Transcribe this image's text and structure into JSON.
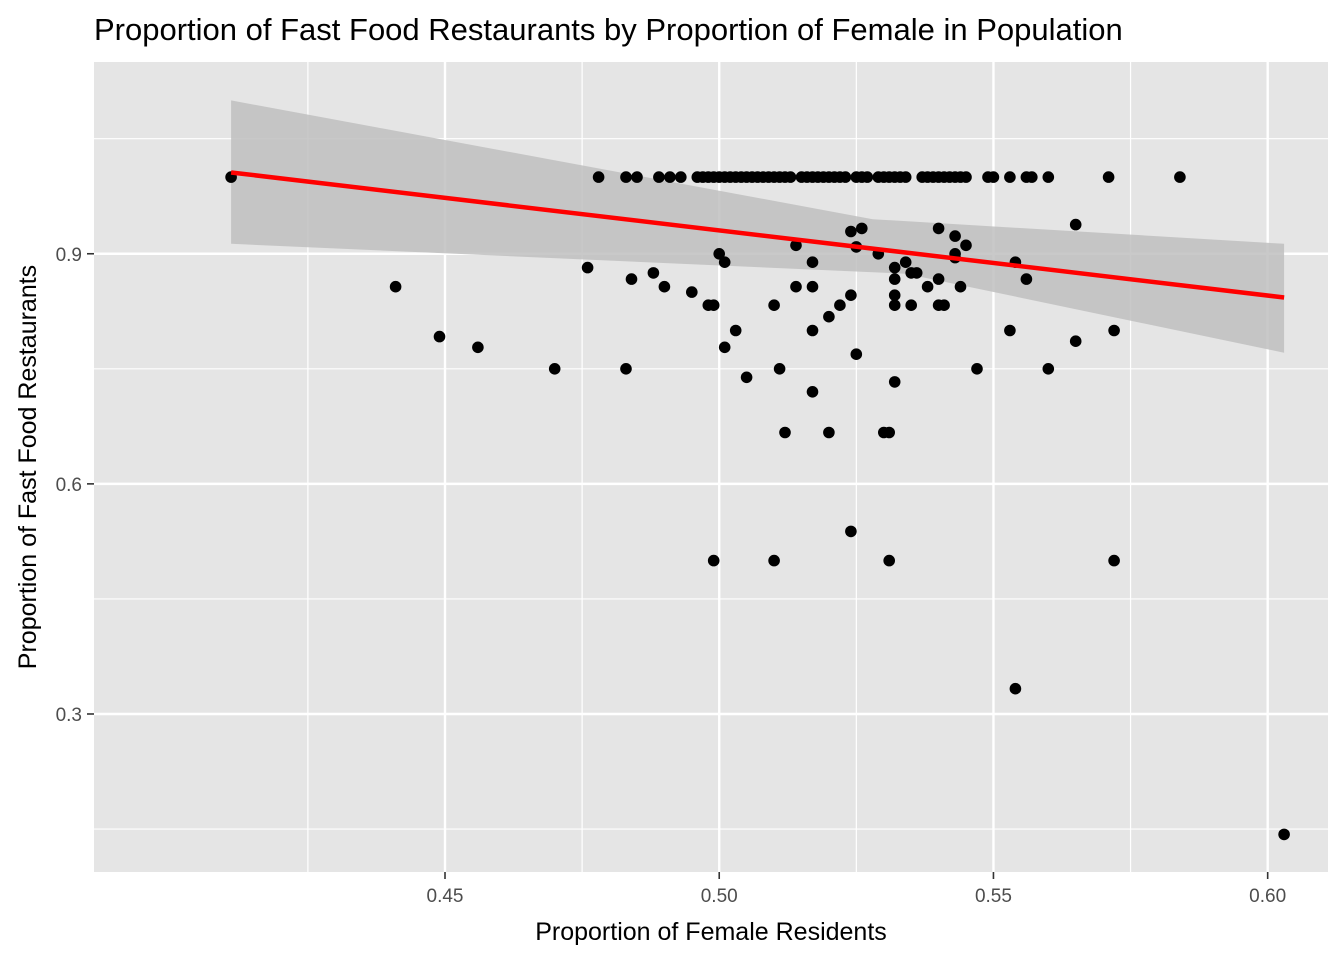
{
  "chart_data": {
    "type": "scatter",
    "title": "Proportion of Fast Food Restaurants by Proportion of Female in Population",
    "xlabel": "Proportion of Female Residents",
    "ylabel": "Proportion of Fast Food Restaurants",
    "xlim": [
      0.386,
      0.611
    ],
    "ylim": [
      0.094,
      1.15
    ],
    "x_ticks": [
      {
        "value": 0.45,
        "label": "0.45"
      },
      {
        "value": 0.5,
        "label": "0.50"
      },
      {
        "value": 0.55,
        "label": "0.55"
      },
      {
        "value": 0.6,
        "label": "0.60"
      }
    ],
    "x_minor_ticks": [
      0.425,
      0.475,
      0.525,
      0.575
    ],
    "y_ticks": [
      {
        "value": 0.3,
        "label": "0.3"
      },
      {
        "value": 0.6,
        "label": "0.6"
      },
      {
        "value": 0.9,
        "label": "0.9"
      }
    ],
    "y_minor_ticks": [
      0.15,
      0.45,
      0.75,
      1.05
    ],
    "grid": true,
    "colors": {
      "panel": "#e5e5e5",
      "grid": "#ffffff",
      "point": "#000000",
      "fit_line": "#ff0000",
      "ribbon": "#bfbfbf",
      "text": "#000000",
      "tick_text": "#4d4d4d"
    },
    "fit": {
      "method": "linear",
      "x": [
        0.411,
        0.603
      ],
      "y": [
        1.006,
        0.843
      ],
      "ci_upper": [
        1.1,
        0.913
      ],
      "ci_lower": [
        0.913,
        0.771
      ],
      "ci_mid_x": [
        0.528,
        0.534
      ],
      "ci_mid_upper": 0.945,
      "ci_mid_lower": 0.874
    },
    "points": [
      [
        0.411,
        1.0
      ],
      [
        0.478,
        1.0
      ],
      [
        0.483,
        1.0
      ],
      [
        0.485,
        1.0
      ],
      [
        0.489,
        1.0
      ],
      [
        0.491,
        1.0
      ],
      [
        0.493,
        1.0
      ],
      [
        0.496,
        1.0
      ],
      [
        0.497,
        1.0
      ],
      [
        0.498,
        1.0
      ],
      [
        0.499,
        1.0
      ],
      [
        0.5,
        1.0
      ],
      [
        0.501,
        1.0
      ],
      [
        0.502,
        1.0
      ],
      [
        0.503,
        1.0
      ],
      [
        0.504,
        1.0
      ],
      [
        0.505,
        1.0
      ],
      [
        0.506,
        1.0
      ],
      [
        0.507,
        1.0
      ],
      [
        0.508,
        1.0
      ],
      [
        0.509,
        1.0
      ],
      [
        0.51,
        1.0
      ],
      [
        0.511,
        1.0
      ],
      [
        0.512,
        1.0
      ],
      [
        0.513,
        1.0
      ],
      [
        0.515,
        1.0
      ],
      [
        0.516,
        1.0
      ],
      [
        0.517,
        1.0
      ],
      [
        0.518,
        1.0
      ],
      [
        0.519,
        1.0
      ],
      [
        0.52,
        1.0
      ],
      [
        0.521,
        1.0
      ],
      [
        0.522,
        1.0
      ],
      [
        0.523,
        1.0
      ],
      [
        0.525,
        1.0
      ],
      [
        0.526,
        1.0
      ],
      [
        0.527,
        1.0
      ],
      [
        0.529,
        1.0
      ],
      [
        0.53,
        1.0
      ],
      [
        0.531,
        1.0
      ],
      [
        0.532,
        1.0
      ],
      [
        0.533,
        1.0
      ],
      [
        0.534,
        1.0
      ],
      [
        0.537,
        1.0
      ],
      [
        0.538,
        1.0
      ],
      [
        0.539,
        1.0
      ],
      [
        0.54,
        1.0
      ],
      [
        0.541,
        1.0
      ],
      [
        0.542,
        1.0
      ],
      [
        0.543,
        1.0
      ],
      [
        0.544,
        1.0
      ],
      [
        0.545,
        1.0
      ],
      [
        0.549,
        1.0
      ],
      [
        0.55,
        1.0
      ],
      [
        0.553,
        1.0
      ],
      [
        0.556,
        1.0
      ],
      [
        0.557,
        1.0
      ],
      [
        0.56,
        1.0
      ],
      [
        0.571,
        1.0
      ],
      [
        0.584,
        1.0
      ],
      [
        0.565,
        0.938
      ],
      [
        0.54,
        0.933
      ],
      [
        0.526,
        0.933
      ],
      [
        0.524,
        0.929
      ],
      [
        0.543,
        0.923
      ],
      [
        0.545,
        0.911
      ],
      [
        0.514,
        0.911
      ],
      [
        0.525,
        0.909
      ],
      [
        0.5,
        0.9
      ],
      [
        0.529,
        0.9
      ],
      [
        0.543,
        0.9
      ],
      [
        0.501,
        0.889
      ],
      [
        0.517,
        0.889
      ],
      [
        0.534,
        0.889
      ],
      [
        0.554,
        0.889
      ],
      [
        0.543,
        0.895
      ],
      [
        0.476,
        0.882
      ],
      [
        0.532,
        0.882
      ],
      [
        0.488,
        0.875
      ],
      [
        0.535,
        0.875
      ],
      [
        0.536,
        0.875
      ],
      [
        0.484,
        0.867
      ],
      [
        0.532,
        0.867
      ],
      [
        0.54,
        0.867
      ],
      [
        0.556,
        0.867
      ],
      [
        0.441,
        0.857
      ],
      [
        0.49,
        0.857
      ],
      [
        0.514,
        0.857
      ],
      [
        0.517,
        0.857
      ],
      [
        0.538,
        0.857
      ],
      [
        0.544,
        0.857
      ],
      [
        0.495,
        0.85
      ],
      [
        0.524,
        0.846
      ],
      [
        0.532,
        0.846
      ],
      [
        0.498,
        0.833
      ],
      [
        0.499,
        0.833
      ],
      [
        0.51,
        0.833
      ],
      [
        0.522,
        0.833
      ],
      [
        0.532,
        0.833
      ],
      [
        0.535,
        0.833
      ],
      [
        0.54,
        0.833
      ],
      [
        0.541,
        0.833
      ],
      [
        0.52,
        0.818
      ],
      [
        0.503,
        0.8
      ],
      [
        0.517,
        0.8
      ],
      [
        0.553,
        0.8
      ],
      [
        0.572,
        0.8
      ],
      [
        0.449,
        0.792
      ],
      [
        0.565,
        0.786
      ],
      [
        0.456,
        0.778
      ],
      [
        0.501,
        0.778
      ],
      [
        0.525,
        0.769
      ],
      [
        0.47,
        0.75
      ],
      [
        0.483,
        0.75
      ],
      [
        0.511,
        0.75
      ],
      [
        0.547,
        0.75
      ],
      [
        0.56,
        0.75
      ],
      [
        0.505,
        0.739
      ],
      [
        0.532,
        0.733
      ],
      [
        0.517,
        0.72
      ],
      [
        0.512,
        0.667
      ],
      [
        0.52,
        0.667
      ],
      [
        0.53,
        0.667
      ],
      [
        0.531,
        0.667
      ],
      [
        0.524,
        0.538
      ],
      [
        0.499,
        0.5
      ],
      [
        0.51,
        0.5
      ],
      [
        0.531,
        0.5
      ],
      [
        0.572,
        0.5
      ],
      [
        0.554,
        0.333
      ],
      [
        0.603,
        0.143
      ]
    ]
  }
}
